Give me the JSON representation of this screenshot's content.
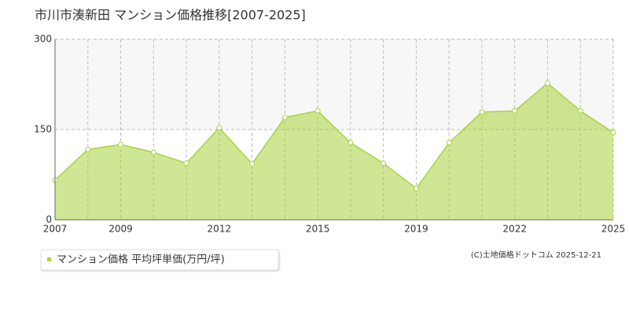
{
  "chart_data": {
    "type": "area",
    "title": "市川市湊新田 マンション価格推移[2007-2025]",
    "categories": [
      "2007",
      null,
      "2009",
      null,
      null,
      "2012",
      null,
      null,
      "2015",
      null,
      null,
      "2019",
      null,
      null,
      "2022",
      null,
      null,
      "2025"
    ],
    "series": [
      {
        "name": "マンション価格 平均坪単価(万円/坪)",
        "color": "#a8d43c",
        "values": [
          66,
          117,
          125,
          112,
          94,
          153,
          93,
          170,
          181,
          128,
          94,
          52,
          128,
          179,
          181,
          227,
          181,
          145
        ]
      }
    ],
    "ylim": [
      0,
      300
    ],
    "yticks": [
      0,
      150,
      300
    ],
    "grid": true,
    "source": "(C)土地価格ドットコム 2025-12-21"
  }
}
